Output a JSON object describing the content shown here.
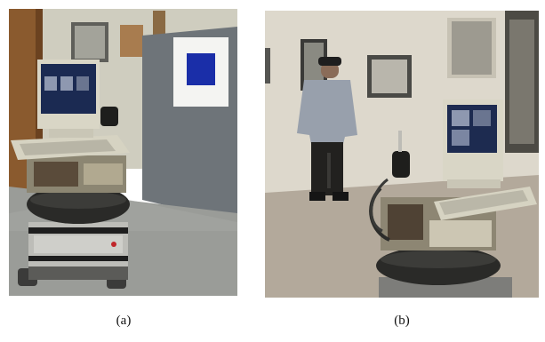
{
  "figure": {
    "panels": [
      {
        "id": "a",
        "caption": "(a)",
        "description_icon": "robot-photo-icon"
      },
      {
        "id": "b",
        "caption": "(b)",
        "description_icon": "robot-and-person-photo-icon"
      }
    ]
  },
  "colors": {
    "wall_a": "#cfcdbf",
    "floor_a": "#9a9c98",
    "partition": "#6e7479",
    "blue_target": "#1a2ea8",
    "wall_b": "#ddd8cc",
    "floor_b": "#b3a99b",
    "tire": "#2a2a28",
    "monitor": "#d9d6c6"
  }
}
